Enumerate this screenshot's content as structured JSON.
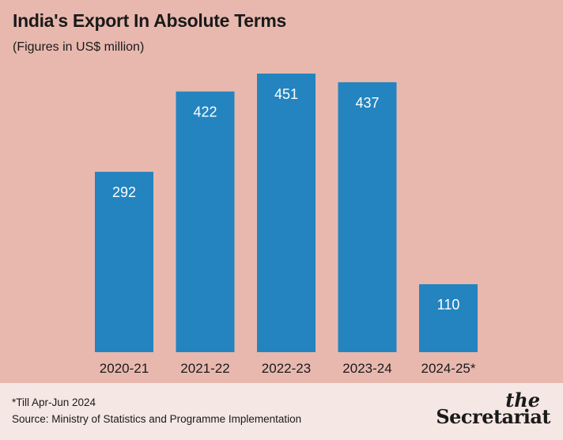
{
  "chart_data": {
    "type": "bar",
    "title": "India's Export In Absolute Terms",
    "subtitle": "(Figures in US$ million)",
    "categories": [
      "2020-21",
      "2021-22",
      "2022-23",
      "2023-24",
      "2024-25*"
    ],
    "values": [
      292,
      422,
      451,
      437,
      110
    ],
    "xlabel": "",
    "ylabel": "",
    "ylim": [
      0,
      451
    ],
    "grid": false,
    "legend": "none",
    "bar_color": "#2384bf",
    "label_color": "#ffffff"
  },
  "footer": {
    "footnote": "*Till Apr-Jun 2024",
    "source": "Source: Ministry of Statistics and Programme Implementation",
    "brand_the": "the",
    "brand_name": "Secretariat"
  },
  "colors": {
    "background": "#e8b8ae",
    "footer_background": "#f5e7e3",
    "text": "#1a1a1a"
  }
}
